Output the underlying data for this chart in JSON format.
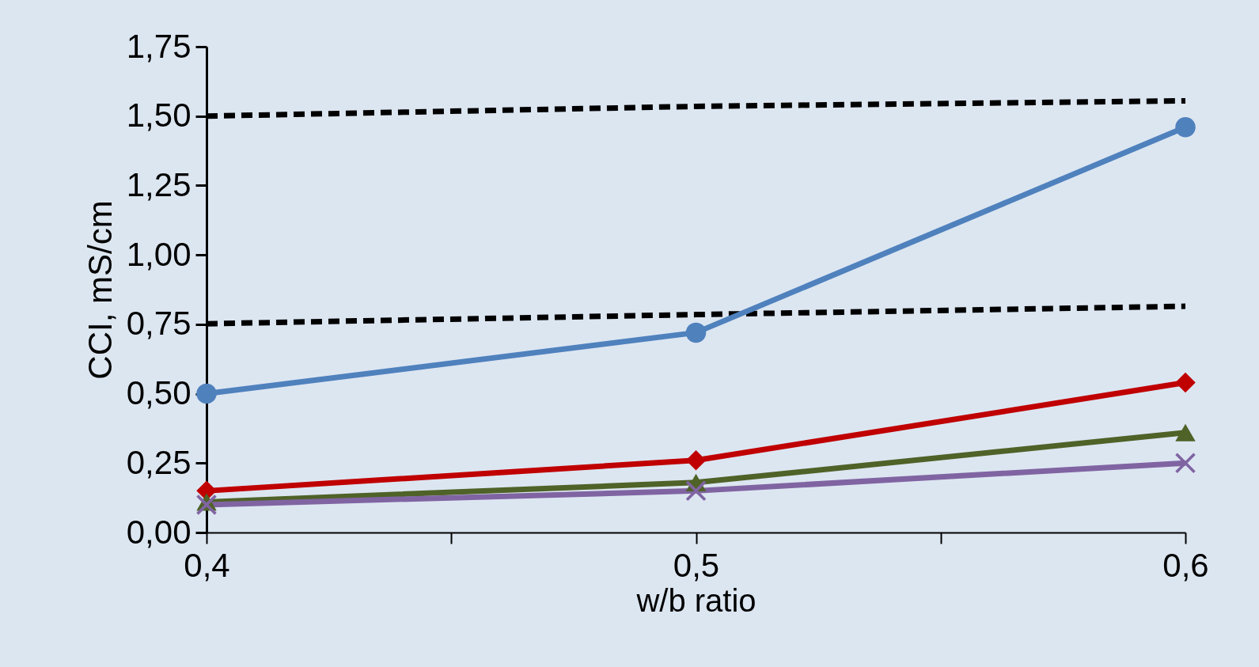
{
  "chart_data": {
    "type": "line",
    "xlabel": "w/b ratio",
    "ylabel": "CCI, mS/cm",
    "x": [
      0.4,
      0.5,
      0.6
    ],
    "xlim": [
      0.4,
      0.6
    ],
    "xticks": [
      {
        "value": 0.4,
        "label": "0,4"
      },
      {
        "value": 0.45,
        "label": null
      },
      {
        "value": 0.5,
        "label": "0,5"
      },
      {
        "value": 0.55,
        "label": null
      },
      {
        "value": 0.6,
        "label": "0,6"
      }
    ],
    "ylim": [
      0,
      1.75
    ],
    "yticks": [
      {
        "value": 0,
        "label": "0,00"
      },
      {
        "value": 0.25,
        "label": "0,25"
      },
      {
        "value": 0.5,
        "label": "0,50"
      },
      {
        "value": 0.75,
        "label": "0,75"
      },
      {
        "value": 1,
        "label": "1,00"
      },
      {
        "value": 1.25,
        "label": "1,25"
      },
      {
        "value": 1.5,
        "label": "1,50"
      },
      {
        "value": 1.75,
        "label": "1,75"
      }
    ],
    "grid": false,
    "legend": false,
    "series": [
      {
        "color": "#000000",
        "values": [
          1.5,
          1.535,
          1.555
        ],
        "line_style": "dashed",
        "marker": "none"
      },
      {
        "color": "#000000",
        "values": [
          0.752,
          0.785,
          0.815
        ],
        "line_style": "dashed",
        "marker": "none"
      },
      {
        "color": "#4f81bd",
        "values": [
          0.5,
          0.72,
          1.46
        ],
        "marker": "circle"
      },
      {
        "color": "#c00000",
        "values": [
          0.15,
          0.26,
          0.54
        ],
        "marker": "diamond"
      },
      {
        "color": "#4f6228",
        "values": [
          0.11,
          0.18,
          0.36
        ],
        "marker": "triangle"
      },
      {
        "color": "#8064a2",
        "values": [
          0.1,
          0.15,
          0.25
        ],
        "marker": "cross"
      }
    ]
  }
}
